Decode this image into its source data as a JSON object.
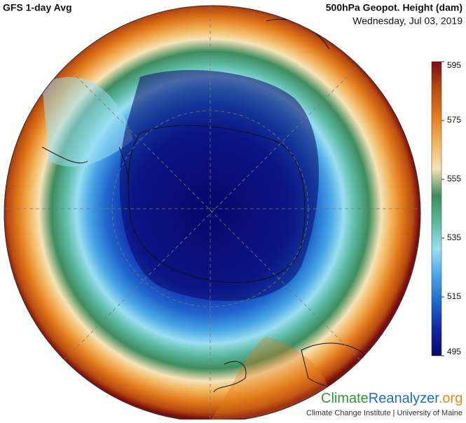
{
  "header": {
    "title": "GFS 1-day Avg",
    "variable": "500hPa Geopot. Height (dam)",
    "date": "Wednesday, Jul 03, 2019"
  },
  "colorbar": {
    "range": [
      495,
      595
    ],
    "ticks": [
      495,
      515,
      535,
      555,
      575,
      595
    ],
    "colors": [
      "#08086a",
      "#1226a8",
      "#1f66cc",
      "#4aa6e6",
      "#9adff2",
      "#5cb8a0",
      "#3f8c5e",
      "#f5e3b6",
      "#f2b25a",
      "#e27a1c",
      "#b84a10",
      "#7a0e0e"
    ]
  },
  "logo": {
    "climate": "Climate",
    "reanalyzer": "Reanalyzer",
    "org": ".org",
    "subtitle": "Climate Change Institute | University of Maine"
  }
}
